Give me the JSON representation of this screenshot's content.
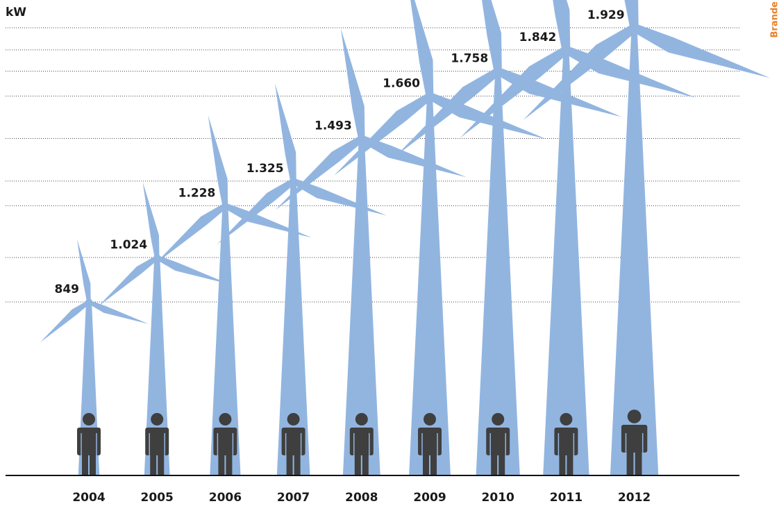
{
  "chart_data": {
    "type": "bar",
    "y_label": "kW",
    "source": "Brande",
    "categories": [
      "2004",
      "2005",
      "2006",
      "2007",
      "2008",
      "2009",
      "2010",
      "2011",
      "2012"
    ],
    "values": [
      849,
      1024,
      1228,
      1325,
      1493,
      1660,
      1758,
      1842,
      1929
    ],
    "value_labels": [
      "849",
      "1.024",
      "1.228",
      "1.325",
      "1.493",
      "1.660",
      "1.758",
      "1.842",
      "1.929"
    ],
    "color": "#92b5e0",
    "figure_color": "#3f3f3f",
    "grid": true
  }
}
